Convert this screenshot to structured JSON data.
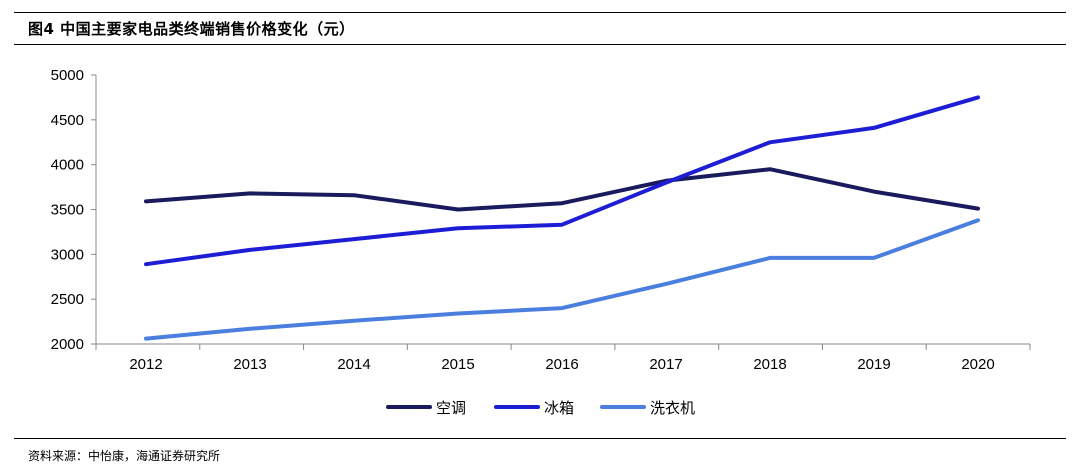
{
  "figure": {
    "title": "图4  中国主要家电品类终端销售价格变化（元）",
    "source": "资料来源：中怡康，海通证券研究所"
  },
  "chart_data": {
    "type": "line",
    "title": "中国主要家电品类终端销售价格变化（元）",
    "xlabel": "",
    "ylabel": "",
    "x": [
      "2012",
      "2013",
      "2014",
      "2015",
      "2016",
      "2017",
      "2018",
      "2019",
      "2020"
    ],
    "ylim": [
      2000,
      5000
    ],
    "yticks": [
      2000,
      2500,
      3000,
      3500,
      4000,
      4500,
      5000
    ],
    "grid": false,
    "legend_position": "bottom",
    "series": [
      {
        "name": "空调",
        "color": "#1a1a5e",
        "values": [
          3590,
          3680,
          3660,
          3500,
          3570,
          3820,
          3950,
          3700,
          3510
        ]
      },
      {
        "name": "冰箱",
        "color": "#1d1dd6",
        "values": [
          2890,
          3050,
          3170,
          3290,
          3330,
          3800,
          4250,
          4410,
          4750
        ]
      },
      {
        "name": "洗衣机",
        "color": "#4a7fe0",
        "values": [
          2060,
          2170,
          2260,
          2340,
          2400,
          2670,
          2960,
          2960,
          3380
        ]
      }
    ]
  }
}
